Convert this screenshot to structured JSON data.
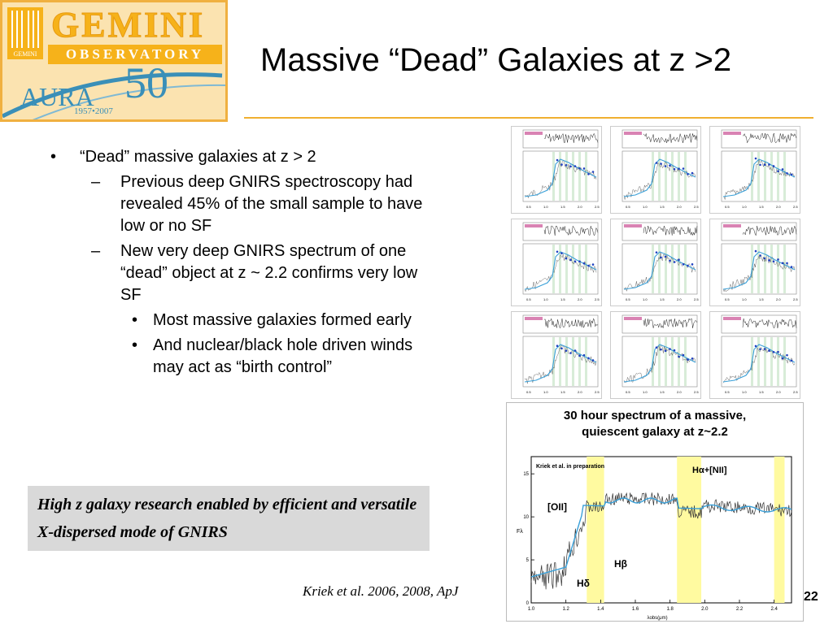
{
  "logo": {
    "name": "GEMINI",
    "subtitle": "OBSERVATORY",
    "mark_text": "GEMINI",
    "partner": "AURA",
    "anniversary": "50",
    "years": "1957•2007"
  },
  "slide": {
    "title": "Massive “Dead” Galaxies at z >2",
    "page_number": "22"
  },
  "bullets": {
    "b1": "“Dead” massive galaxies at z > 2",
    "b1_marker": "•",
    "b2a": "Previous deep GNIRS spectroscopy had revealed 45% of the small sample to have low or no SF",
    "b2b": "New very deep GNIRS spectrum of one “dead” object  at z ~ 2.2 confirms very low SF",
    "b2_marker": "–",
    "b3a": "Most massive galaxies formed early",
    "b3b": "And nuclear/black hole driven winds may act as “birth control”",
    "b3_marker": "•"
  },
  "highlight": {
    "text": "High z galaxy research enabled by efficient and versatile X-dispersed mode of GNIRS"
  },
  "citation": "Kriek et al. 2006, 2008, ApJ",
  "spectrum": {
    "title_line1": "30 hour spectrum of a massive,",
    "title_line2": "quiescent galaxy at z~2.2",
    "credit": "Kriek et al. in preparation",
    "lines": [
      "[OII]",
      "Hδ",
      "Hβ",
      "Hα+[NII]"
    ],
    "x_ticks": [
      "1.0",
      "1.2",
      "1.4",
      "1.6",
      "1.8",
      "2.0",
      "2.2",
      "2.4"
    ],
    "x_label": "λobs(μm)",
    "y_label": "Fλ",
    "y_ticks": [
      "15",
      "10",
      "5",
      "0"
    ],
    "band_color": "#fffaa0",
    "model_color": "#3aa0d8"
  },
  "grid": {
    "x_ticks": [
      "0.5",
      "1.0",
      "1.5",
      "2.0",
      "2.5"
    ]
  }
}
